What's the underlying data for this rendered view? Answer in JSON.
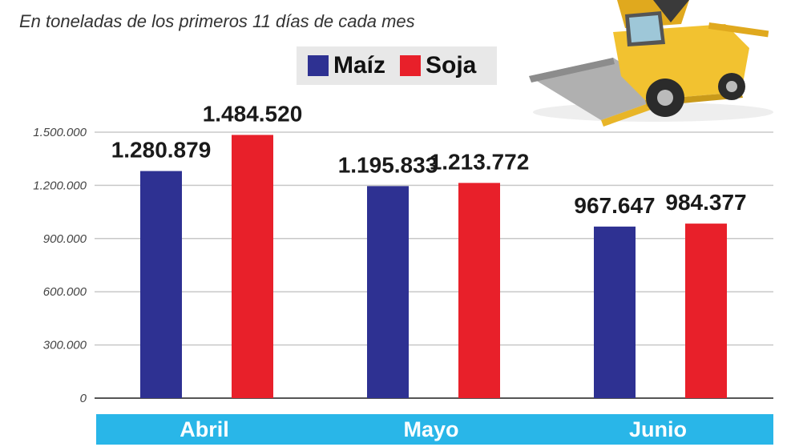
{
  "subtitle": "En toneladas de los primeros 11 días de cada mes",
  "colors": {
    "maiz": "#2e3192",
    "soja": "#e8202a",
    "band": "#29b6e8",
    "grid": "#c8c8c8"
  },
  "chart_data": {
    "type": "bar",
    "title": "",
    "subtitle": "En toneladas de los primeros 11 días de cada mes",
    "categories": [
      "Abril",
      "Mayo",
      "Junio"
    ],
    "series": [
      {
        "name": "Maíz",
        "values": [
          1280879,
          1195833,
          967647
        ],
        "labels": [
          "1.280.879",
          "1.195.833",
          "967.647"
        ]
      },
      {
        "name": "Soja",
        "values": [
          1484520,
          1213772,
          984377
        ],
        "labels": [
          "1.484.520",
          "1.213.772",
          "984.377"
        ]
      }
    ],
    "yticks": [
      0,
      300000,
      600000,
      900000,
      1200000,
      1500000
    ],
    "ytick_labels": [
      "0",
      "300.000",
      "600.000",
      "900.000",
      "1.200.000",
      "1.500.000"
    ],
    "ylim": [
      0,
      1500000
    ],
    "grid": true,
    "legend": "top-center"
  },
  "icons": {
    "illustration": "combine-harvester-icon"
  }
}
